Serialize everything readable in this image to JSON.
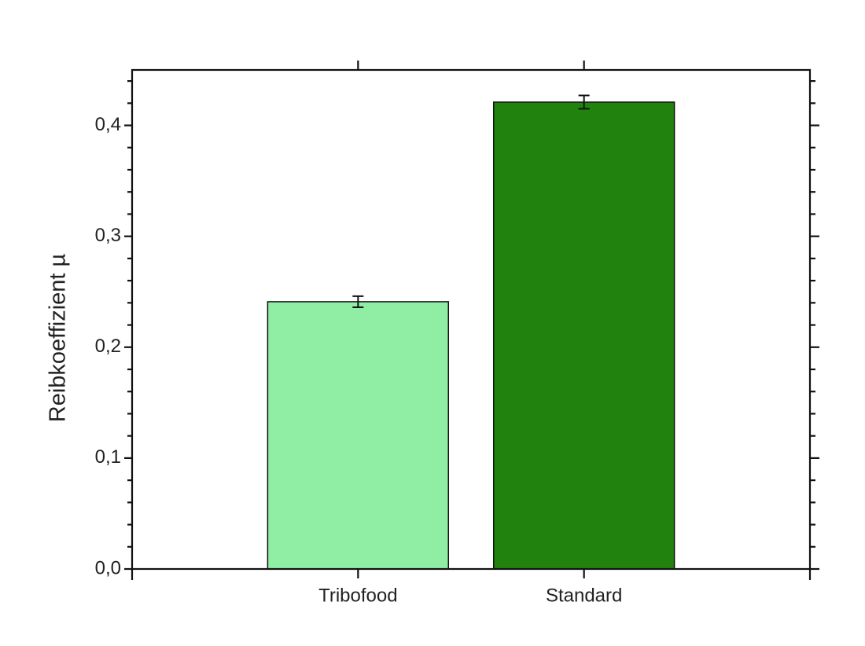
{
  "chart_data": {
    "type": "bar",
    "y_label": "Reibkoeffizient µ",
    "categories": [
      "Tribofood",
      "Standard"
    ],
    "values": [
      0.241,
      0.421
    ],
    "errors": [
      0.005,
      0.006
    ],
    "colors": [
      "#90eea4",
      "#21830d"
    ],
    "edge_color": "#111111",
    "xlim": [
      0,
      3
    ],
    "ylim": [
      0,
      0.45
    ],
    "yticks": [
      {
        "value": 0,
        "label": "0,0"
      },
      {
        "value": 0.1,
        "label": "0,1"
      },
      {
        "value": 0.2,
        "label": "0,2"
      },
      {
        "value": 0.3,
        "label": "0,3"
      },
      {
        "value": 0.4,
        "label": "0,4"
      }
    ],
    "y_minor_per_major": 4,
    "bar_width": 0.8
  }
}
